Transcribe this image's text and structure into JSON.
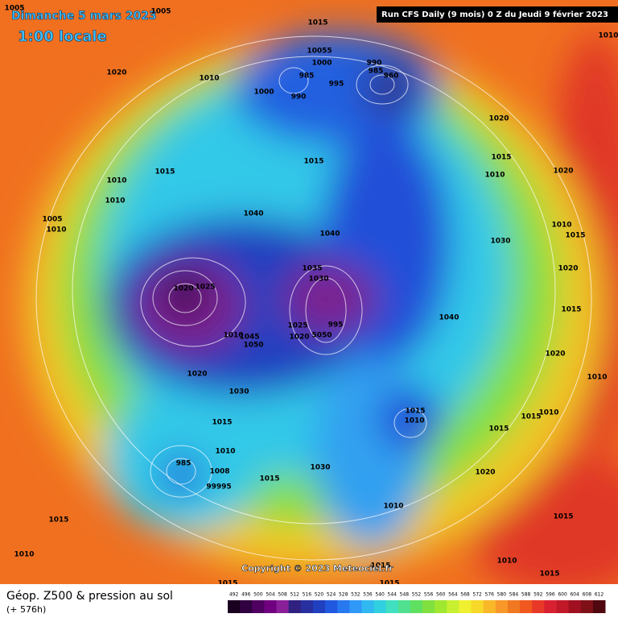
{
  "header": {
    "date": "Dimanche 5 mars 2023",
    "time": "1:00 locale",
    "run": "Run CFS Daily (9 mois) 0 Z du Jeudi 9 février 2023"
  },
  "map": {
    "isobar_labels": [
      1005,
      1005,
      1015,
      1020,
      1010,
      10055,
      1000,
      990,
      985,
      960,
      985,
      995,
      1000,
      990,
      1020,
      1015,
      1015,
      1015,
      1010,
      1020,
      1010,
      1010,
      1040,
      1005,
      1010,
      1010,
      1015,
      1040,
      1030,
      1020,
      1035,
      1030,
      1020,
      1025,
      1015,
      1040,
      1025,
      995,
      1045,
      1010,
      1050,
      1020,
      5050,
      1020,
      1020,
      1030,
      1010,
      1015,
      1010,
      1015,
      1015,
      1010,
      1015,
      1010,
      985,
      1008,
      1030,
      1020,
      99995,
      1015,
      1010,
      1015,
      1015,
      1010,
      1010,
      1015,
      1015,
      1015,
      1015,
      1010
    ],
    "copyright": "Copyright © 2023 Meteociel.fr"
  },
  "legend": {
    "title": "Géop. Z500 & pression au sol",
    "lead_time": "(+ 576h)",
    "ticks": [
      492,
      496,
      500,
      504,
      508,
      512,
      516,
      520,
      524,
      528,
      532,
      536,
      540,
      544,
      548,
      552,
      556,
      560,
      564,
      568,
      572,
      576,
      580,
      584,
      588,
      592,
      596,
      600,
      604,
      608,
      612
    ],
    "colors": [
      "#1a0020",
      "#300040",
      "#500060",
      "#700080",
      "#8a2098",
      "#302080",
      "#2830a0",
      "#2040c0",
      "#2058e0",
      "#2878f0",
      "#3098f8",
      "#30b8f0",
      "#30d0e0",
      "#40e0c0",
      "#50e090",
      "#60e060",
      "#80e040",
      "#a0e830",
      "#c8f030",
      "#f0f030",
      "#f8d828",
      "#f8b828",
      "#f89828",
      "#f07820",
      "#f05820",
      "#e83828",
      "#d82030",
      "#c01828",
      "#a01020",
      "#801018",
      "#500810"
    ]
  }
}
